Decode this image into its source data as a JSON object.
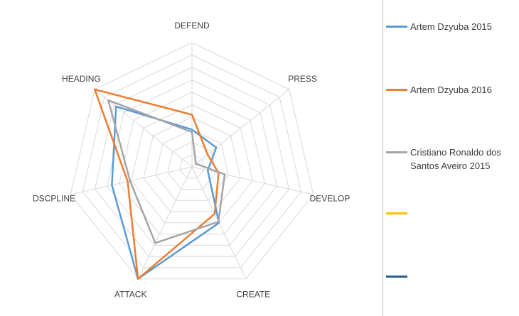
{
  "chart_data": {
    "type": "radar",
    "axes": [
      "DEFEND",
      "PRESS",
      "DEVELOP",
      "CREATE",
      "ATTACK",
      "DSCPLINE",
      "HEADING"
    ],
    "rmax": 10,
    "grid_levels": 10,
    "gridlines": true,
    "legend_position": "right",
    "series": [
      {
        "name": "Artem Dzyuba 2015",
        "color": "#5b9bd5",
        "values": [
          3,
          2.5,
          1.3,
          5,
          10,
          6.6,
          7.8
        ]
      },
      {
        "name": "Artem Dzyuba 2016",
        "color": "#ed7d31",
        "values": [
          4.2,
          1.6,
          2.2,
          4.2,
          10,
          5.3,
          10
        ]
      },
      {
        "name": "Cristiano Ronaldo dos Santos Aveiro 2015",
        "color": "#a5a5a5",
        "values": [
          2.8,
          0.4,
          2.7,
          4.9,
          6.8,
          5.1,
          8.6
        ]
      },
      {
        "name": "",
        "color": "#ffc000",
        "values": []
      },
      {
        "name": "",
        "color": "#255e91",
        "values": []
      }
    ]
  }
}
